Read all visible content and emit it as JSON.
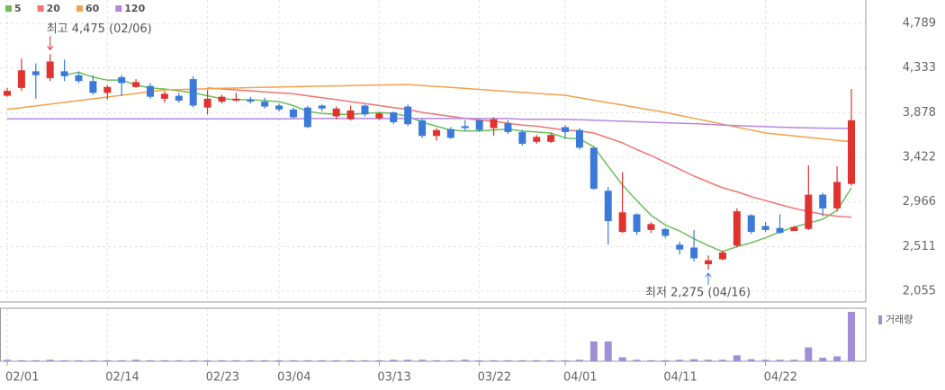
{
  "chart_data": {
    "type": "candlestick",
    "categories": [
      "02/01",
      null,
      null,
      null,
      null,
      null,
      null,
      "02/14",
      null,
      null,
      null,
      null,
      null,
      null,
      "02/23",
      null,
      null,
      null,
      null,
      "03/04",
      null,
      null,
      null,
      null,
      null,
      null,
      "03/13",
      null,
      null,
      null,
      null,
      null,
      null,
      "03/22",
      null,
      null,
      null,
      null,
      null,
      "04/01",
      null,
      null,
      null,
      null,
      null,
      null,
      "04/11",
      null,
      null,
      null,
      null,
      null,
      null,
      "04/22",
      null,
      null,
      null,
      null,
      null,
      null
    ],
    "open": [
      4050,
      4130,
      4300,
      4230,
      4300,
      4260,
      4200,
      4080,
      4240,
      4140,
      4150,
      4020,
      4050,
      4220,
      3930,
      3990,
      4000,
      4010,
      3990,
      3950,
      3910,
      3930,
      3950,
      3840,
      3810,
      3950,
      3820,
      3880,
      3940,
      3800,
      3640,
      3710,
      3740,
      3800,
      3720,
      3770,
      3680,
      3580,
      3580,
      3730,
      3700,
      3520,
      3080,
      2660,
      2840,
      2680,
      2690,
      2530,
      2500,
      2330,
      2380,
      2520,
      2830,
      2720,
      2700,
      2670,
      2690,
      3040,
      2900,
      3150
    ],
    "high": [
      4130,
      4430,
      4380,
      4475,
      4420,
      4300,
      4260,
      4160,
      4260,
      4220,
      4180,
      4100,
      4080,
      4250,
      4110,
      4060,
      4080,
      4040,
      4030,
      3970,
      3930,
      3950,
      3960,
      3940,
      3950,
      3960,
      3880,
      3890,
      3960,
      3820,
      3720,
      3730,
      3800,
      3810,
      3830,
      3800,
      3700,
      3650,
      3670,
      3750,
      3720,
      3530,
      3120,
      3270,
      2850,
      2760,
      2700,
      2560,
      2680,
      2420,
      2470,
      2900,
      2840,
      2760,
      2840,
      2720,
      3340,
      3060,
      3330,
      4120
    ],
    "low": [
      4040,
      4100,
      4020,
      4200,
      4200,
      4180,
      4060,
      4010,
      4050,
      4130,
      4020,
      3980,
      3980,
      3930,
      3860,
      3970,
      3990,
      3970,
      3920,
      3890,
      3820,
      3720,
      3890,
      3810,
      3800,
      3840,
      3800,
      3760,
      3740,
      3620,
      3590,
      3610,
      3690,
      3680,
      3640,
      3660,
      3540,
      3560,
      3570,
      3610,
      3500,
      3090,
      2530,
      2650,
      2630,
      2650,
      2600,
      2430,
      2360,
      2275,
      2370,
      2500,
      2640,
      2660,
      2640,
      2670,
      2680,
      2820,
      2870,
      3130
    ],
    "close": [
      4100,
      4310,
      4260,
      4400,
      4250,
      4200,
      4080,
      4140,
      4180,
      4190,
      4040,
      4070,
      4000,
      3950,
      4020,
      4040,
      4020,
      3990,
      3940,
      3910,
      3830,
      3730,
      3920,
      3920,
      3900,
      3860,
      3870,
      3780,
      3760,
      3640,
      3700,
      3620,
      3720,
      3700,
      3810,
      3680,
      3560,
      3630,
      3650,
      3680,
      3520,
      3100,
      2770,
      2860,
      2660,
      2740,
      2620,
      2480,
      2390,
      2370,
      2450,
      2870,
      2660,
      2680,
      2650,
      2710,
      3040,
      2900,
      3170,
      3800
    ],
    "up_color": "#e0322e",
    "down_color": "#3b7ad9",
    "volume_name": "거래량",
    "volume_color": "#a08ed6",
    "volume": [
      3,
      2,
      2,
      3,
      2,
      2,
      2,
      2,
      2,
      3,
      2,
      2,
      2,
      2,
      2,
      2,
      2,
      2,
      2,
      2,
      2,
      2,
      2,
      2,
      2,
      2,
      2,
      3,
      3,
      3,
      2,
      2,
      3,
      2,
      2,
      2,
      2,
      2,
      2,
      2,
      3,
      40,
      40,
      8,
      3,
      2,
      2,
      3,
      4,
      3,
      3,
      12,
      4,
      3,
      3,
      3,
      28,
      7,
      10,
      100
    ],
    "ma": [
      {
        "name": "5",
        "color": "#6cc05a",
        "values": [
          null,
          null,
          null,
          null,
          4260,
          4290,
          4240,
          4210,
          4210,
          4160,
          4130,
          4120,
          4100,
          4080,
          4050,
          4020,
          4010,
          4010,
          4000,
          3990,
          3950,
          3890,
          3870,
          3860,
          3860,
          3870,
          3880,
          3870,
          3840,
          3780,
          3740,
          3700,
          3690,
          3690,
          3700,
          3710,
          3690,
          3680,
          3670,
          3620,
          3610,
          3530,
          3330,
          3140,
          2980,
          2830,
          2730,
          2670,
          2590,
          2520,
          2460,
          2510,
          2550,
          2600,
          2660,
          2710,
          2750,
          2790,
          2880,
          3110
        ]
      },
      {
        "name": "20",
        "color": "#f07474",
        "values": [
          null,
          null,
          null,
          null,
          null,
          null,
          null,
          null,
          null,
          null,
          null,
          null,
          null,
          null,
          4130,
          4120,
          4110,
          4100,
          4090,
          4080,
          4070,
          4050,
          4030,
          4010,
          3990,
          3970,
          3950,
          3930,
          3910,
          3880,
          3860,
          3840,
          3820,
          3800,
          3790,
          3770,
          3750,
          3740,
          3720,
          3700,
          3690,
          3670,
          3620,
          3570,
          3500,
          3440,
          3370,
          3300,
          3230,
          3170,
          3110,
          3070,
          3020,
          2980,
          2940,
          2900,
          2870,
          2840,
          2820,
          2810
        ]
      },
      {
        "name": "60",
        "color": "#f5a04a",
        "values": [
          3910,
          3928,
          3946,
          3965,
          3983,
          4001,
          4019,
          4037,
          4055,
          4074,
          4092,
          4110,
          4114,
          4118,
          4122,
          4126,
          4129,
          4133,
          4137,
          4140,
          4143,
          4146,
          4149,
          4151,
          4154,
          4157,
          4160,
          4162,
          4165,
          4155,
          4145,
          4135,
          4125,
          4115,
          4105,
          4095,
          4085,
          4075,
          4065,
          4055,
          4030,
          4005,
          3980,
          3955,
          3930,
          3905,
          3880,
          3850,
          3820,
          3790,
          3760,
          3730,
          3700,
          3670,
          3655,
          3640,
          3625,
          3610,
          3595,
          3580
        ]
      },
      {
        "name": "120",
        "color": "#b586e0",
        "values": [
          3815,
          3815,
          3815,
          3815,
          3815,
          3815,
          3815,
          3815,
          3815,
          3815,
          3815,
          3815,
          3815,
          3815,
          3815,
          3815,
          3815,
          3815,
          3815,
          3815,
          3815,
          3818,
          3818,
          3818,
          3818,
          3818,
          3818,
          3818,
          3818,
          3818,
          3818,
          3818,
          3818,
          3818,
          3818,
          3818,
          3810,
          3810,
          3810,
          3810,
          3805,
          3800,
          3795,
          3790,
          3785,
          3780,
          3775,
          3770,
          3765,
          3760,
          3750,
          3745,
          3740,
          3735,
          3730,
          3725,
          3722,
          3720,
          3718,
          3715
        ]
      }
    ],
    "ylim": [
      1945,
      5028
    ],
    "yticks": [
      {
        "value": 2055,
        "label": "2,055"
      },
      {
        "value": 2511,
        "label": "2,511"
      },
      {
        "value": 2966,
        "label": "2,966"
      },
      {
        "value": 3422,
        "label": "3,422"
      },
      {
        "value": 3878,
        "label": "3,878"
      },
      {
        "value": 4333,
        "label": "4,333"
      },
      {
        "value": 4789,
        "label": "4,789"
      }
    ],
    "annotations": [
      {
        "text": "최고 4,475 (02/06)",
        "color": "#e0322e"
      },
      {
        "text": "최저 2,275 (04/16)",
        "color": "#3b7ad9"
      }
    ],
    "grid": true
  }
}
